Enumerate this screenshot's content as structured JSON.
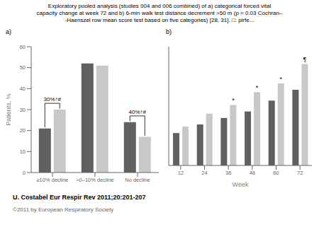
{
  "title": "Exploratory pooled analysis (studies 004 and 006 combined) of a) categorical forced vital\ncapacity change at week 72 and b) 6-min walk test distance decrement >50 m (p = 0.03 Cochran–\n-Haenszel row mean score test based on five categories) [28, 31]. □: pirfe...",
  "annotations": [
    "U. Costabel Eur Respir Rev 2011;20:201-207",
    "©2011 by European Respiratory Society"
  ],
  "chart_data": [
    {
      "type": "bar",
      "subtitle": "a)",
      "categories": [
        "≥10% decline",
        ">0–10% decline",
        "No decline"
      ],
      "series": [
        {
          "color": "#606060",
          "values": [
            21,
            52,
            24
          ]
        },
        {
          "color": "#c8c8c8",
          "values": [
            30,
            51,
            17
          ]
        }
      ],
      "ylabel": "Patients, %",
      "ylim": [
        0,
        60
      ],
      "yticks": [
        0,
        10,
        20,
        30,
        40,
        50,
        60
      ],
      "annotations": [
        {
          "text": "30%↑#",
          "category": "≥10% decline",
          "series": [
            0,
            1
          ]
        },
        {
          "text": "40%↑#",
          "category": "No decline",
          "series": [
            0,
            1
          ]
        }
      ]
    },
    {
      "type": "bar",
      "subtitle": "b)",
      "categories": [
        "12",
        "24",
        "36",
        "48",
        "60",
        "72"
      ],
      "xlabel": "Week",
      "series": [
        {
          "color": "#606060",
          "values": [
            15,
            19,
            22,
            25,
            30,
            35
          ]
        },
        {
          "color": "#c8c8c8",
          "values": [
            18,
            24,
            28,
            34,
            38,
            47
          ]
        }
      ],
      "ylim": [
        0,
        55
      ],
      "yticks": [
        0,
        10,
        20,
        30,
        40,
        50
      ],
      "tick_labels": "x",
      "annotations": [
        {
          "text": "*",
          "category": "36",
          "series": 1
        },
        {
          "text": "*",
          "category": "48",
          "series": 1
        },
        {
          "text": "*",
          "category": "60",
          "series": 1
        },
        {
          "text": "¶",
          "category": "72",
          "series": 1
        }
      ]
    }
  ]
}
